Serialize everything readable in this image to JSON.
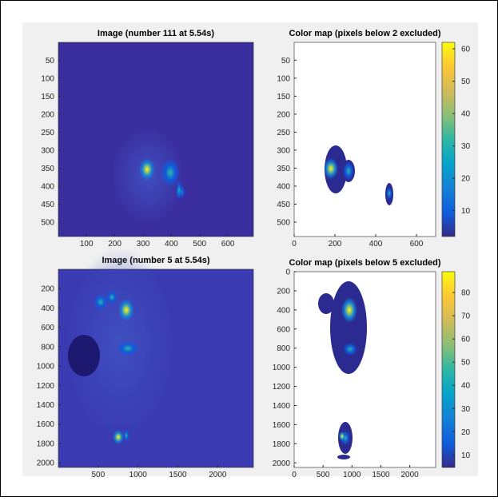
{
  "chart_data": [
    {
      "type": "image",
      "title": "Image (number 111 at 5.54s)",
      "xlim": [
        0.5,
        690
      ],
      "ylim": [
        0.5,
        540
      ],
      "xticks": [
        100,
        200,
        300,
        400,
        500,
        600
      ],
      "yticks": [
        50,
        100,
        150,
        200,
        250,
        300,
        350,
        400,
        450,
        500
      ]
    },
    {
      "type": "colormap",
      "title": "Color map (pixels below 2 excluded)",
      "xlim": [
        0,
        694
      ],
      "ylim": [
        0.5,
        540
      ],
      "xticks": [
        0,
        200,
        400,
        600
      ],
      "yticks": [
        50,
        100,
        150,
        200,
        250,
        300,
        350,
        400,
        450,
        500
      ],
      "clim": [
        2,
        62
      ],
      "cticks": [
        10,
        20,
        30,
        40,
        50,
        60
      ]
    },
    {
      "type": "image",
      "title": "Image (number 5 at 5.54s)",
      "xlim": [
        0.5,
        2448
      ],
      "ylim": [
        0.5,
        2048
      ],
      "xticks": [
        500,
        1000,
        1500,
        2000
      ],
      "yticks": [
        200,
        400,
        600,
        800,
        1000,
        1200,
        1400,
        1600,
        1800,
        2000
      ]
    },
    {
      "type": "colormap",
      "title": "Color map (pixels below 5 excluded)",
      "xlim": [
        0,
        2448
      ],
      "ylim": [
        0,
        2048
      ],
      "xticks": [
        0,
        500,
        1000,
        1500,
        2000
      ],
      "yticks": [
        0,
        200,
        400,
        600,
        800,
        1000,
        1200,
        1400,
        1600,
        1800,
        2000
      ],
      "clim": [
        4.6,
        89
      ],
      "cticks": [
        10,
        20,
        30,
        40,
        50,
        60,
        70,
        80
      ]
    }
  ]
}
